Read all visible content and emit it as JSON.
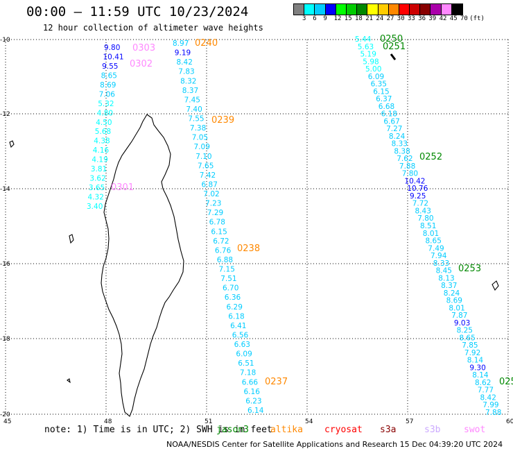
{
  "title": "00:00 – 11:59 UTC 10/23/2024",
  "subtitle": "12 hour collection of altimeter wave heights",
  "colorbar": {
    "labels": [
      "3",
      "6",
      "9",
      "12",
      "15",
      "18",
      "21",
      "24",
      "27",
      "30",
      "33",
      "36",
      "39",
      "42",
      "45",
      "70",
      "(ft)"
    ],
    "colors": [
      "#808080",
      "#00ffff",
      "#00ccff",
      "#0000ff",
      "#00ff00",
      "#00cc00",
      "#008800",
      "#ffff00",
      "#ffcc00",
      "#ff8800",
      "#ff0000",
      "#cc0000",
      "#880000",
      "#aa00aa",
      "#ff88ff",
      "#000000"
    ]
  },
  "axes": {
    "lon_labels": [
      "45",
      "48",
      "51",
      "54",
      "57",
      "60"
    ],
    "lat_labels": [
      "-10",
      "-12",
      "-14",
      "-16",
      "-18",
      "-20"
    ]
  },
  "passes": [
    {
      "id": "0303",
      "color": "#ff88ff"
    },
    {
      "id": "0302",
      "color": "#ff88ff"
    },
    {
      "id": "0301",
      "color": "#ff88ff"
    },
    {
      "id": "0240",
      "color": "#ff8800"
    },
    {
      "id": "0239",
      "color": "#ff8800"
    },
    {
      "id": "0238",
      "color": "#ff8800"
    },
    {
      "id": "0237",
      "color": "#ff8800"
    },
    {
      "id": "0250",
      "color": "#008800"
    },
    {
      "id": "0251",
      "color": "#008800"
    },
    {
      "id": "0252",
      "color": "#008800"
    },
    {
      "id": "0253",
      "color": "#008800"
    },
    {
      "id": "025",
      "color": "#008800"
    }
  ],
  "track_a": {
    "values": [
      "9.80",
      "10.41",
      "9.55",
      "8.65",
      "8.69",
      "7.06",
      "5.32",
      "4.80",
      "4.50",
      "5.68",
      "4.38",
      "4.16",
      "4.19",
      "3.81",
      "3.62",
      "3.65",
      "4.32",
      "3.40"
    ],
    "colors": [
      "#0000ff",
      "#0000ff",
      "#0000ff",
      "#00ccff",
      "#00ccff",
      "#00ccff",
      "#00ffff",
      "#00ffff",
      "#00ffff",
      "#00ffff",
      "#00ffff",
      "#00ffff",
      "#00ffff",
      "#00ffff",
      "#00ffff",
      "#00ffff",
      "#00ffff",
      "#00ffff"
    ]
  },
  "track_b": {
    "values": [
      "8.97",
      "9.19",
      "8.42",
      "7.83",
      "8.32",
      "8.37",
      "7.45",
      "7.40",
      "7.55",
      "7.38",
      "7.05",
      "7.09",
      "7.10",
      "7.65",
      "7.42",
      "6.87",
      "7.02",
      "7.23",
      "7.29",
      "6.78",
      "6.15",
      "6.72",
      "6.76",
      "6.88",
      "7.15",
      "7.51",
      "6.70",
      "6.36",
      "6.29",
      "6.18",
      "6.41",
      "6.56",
      "6.63",
      "6.09",
      "6.51",
      "7.18",
      "6.66",
      "6.16",
      "6.23",
      "6.14"
    ],
    "colors": [
      "#00ccff",
      "#0000ff",
      "#00ccff",
      "#00ccff",
      "#00ccff",
      "#00ccff",
      "#00ccff",
      "#00ccff",
      "#00ccff",
      "#00ccff",
      "#00ccff",
      "#00ccff",
      "#00ccff",
      "#00ccff",
      "#00ccff",
      "#00ccff",
      "#00ccff",
      "#00ccff",
      "#00ccff",
      "#00ccff",
      "#00ccff",
      "#00ccff",
      "#00ccff",
      "#00ccff",
      "#00ccff",
      "#00ccff",
      "#00ccff",
      "#00ccff",
      "#00ccff",
      "#00ccff",
      "#00ccff",
      "#00ccff",
      "#00ccff",
      "#00ccff",
      "#00ccff",
      "#00ccff",
      "#00ccff",
      "#00ccff",
      "#00ccff",
      "#00ccff"
    ]
  },
  "track_c": {
    "values": [
      "5.44",
      "5.63",
      "5.19",
      "5.98",
      "5.00",
      "6.09",
      "6.35",
      "6.15",
      "6.37",
      "6.68",
      "6.18",
      "6.67",
      "7.27",
      "8.24",
      "8.33",
      "8.38",
      "7.62",
      "7.88",
      "7.80",
      "10.42",
      "10.76",
      "9.25",
      "7.72",
      "8.43",
      "7.80",
      "8.51",
      "8.01",
      "8.65",
      "7.49",
      "7.94",
      "8.33",
      "8.45",
      "8.13",
      "8.37",
      "8.24",
      "8.69",
      "8.01",
      "7.87",
      "9.03",
      "8.25",
      "8.65",
      "7.85",
      "7.92",
      "8.14",
      "9.30",
      "8.14",
      "8.62",
      "7.77",
      "8.42",
      "7.99",
      "7.88"
    ],
    "colors": [
      "#00ffff",
      "#00ffff",
      "#00ffff",
      "#00ffff",
      "#00ffff",
      "#00ccff",
      "#00ccff",
      "#00ccff",
      "#00ccff",
      "#00ccff",
      "#00ccff",
      "#00ccff",
      "#00ccff",
      "#00ccff",
      "#00ccff",
      "#00ccff",
      "#00ccff",
      "#00ccff",
      "#00ccff",
      "#0000ff",
      "#0000ff",
      "#0000ff",
      "#00ccff",
      "#00ccff",
      "#00ccff",
      "#00ccff",
      "#00ccff",
      "#00ccff",
      "#00ccff",
      "#00ccff",
      "#00ccff",
      "#00ccff",
      "#00ccff",
      "#00ccff",
      "#00ccff",
      "#00ccff",
      "#00ccff",
      "#00ccff",
      "#0000ff",
      "#00ccff",
      "#00ccff",
      "#00ccff",
      "#00ccff",
      "#00ccff",
      "#0000ff",
      "#00ccff",
      "#00ccff",
      "#00ccff",
      "#00ccff",
      "#00ccff",
      "#00ccff"
    ]
  },
  "note": "note: 1) Time is in UTC; 2) SWH is in feet",
  "legend": [
    {
      "label": "jason3",
      "color": "#008800"
    },
    {
      "label": "altika",
      "color": "#ff8800"
    },
    {
      "label": "cryosat",
      "color": "#ff0000"
    },
    {
      "label": "s3a",
      "color": "#880000"
    },
    {
      "label": "s3b",
      "color": "#ccaaff"
    },
    {
      "label": "swot",
      "color": "#ff88ff"
    }
  ],
  "credit": "NOAA/NESDIS Center for Satellite Applications and Research   15 Dec 04:39:20 UTC 2024"
}
